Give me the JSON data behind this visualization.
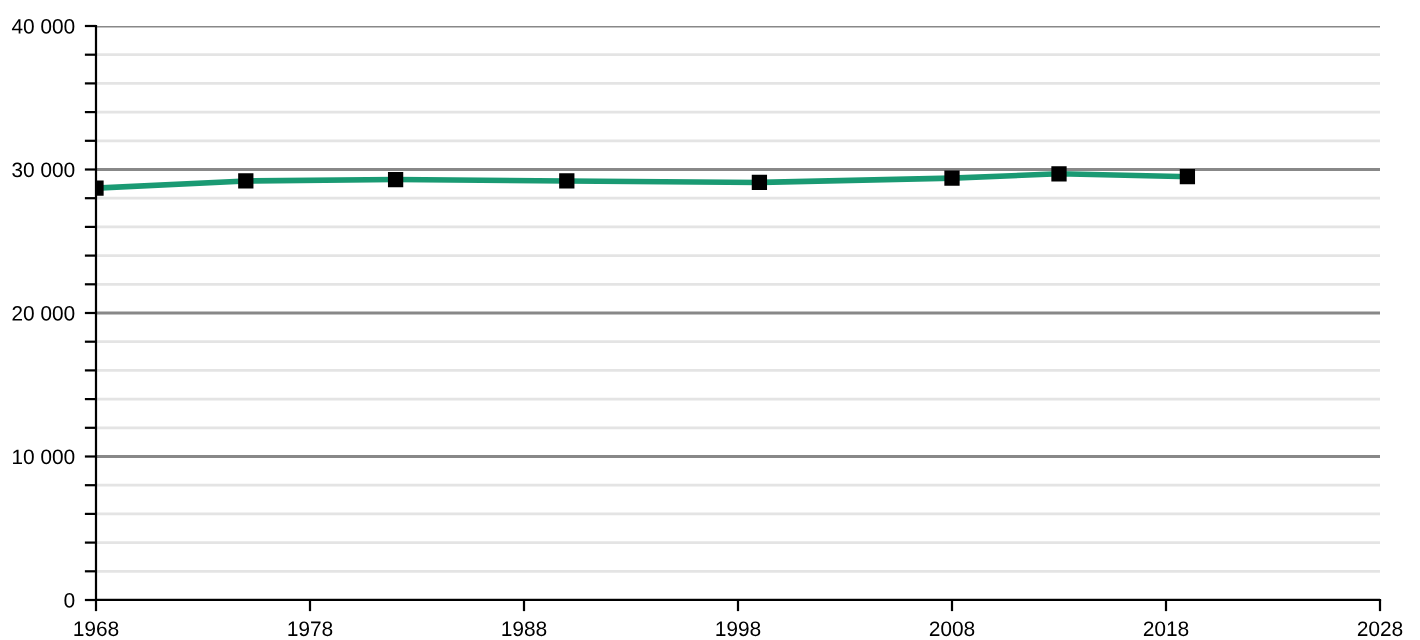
{
  "chart_data": {
    "type": "line",
    "x": [
      1968,
      1975,
      1982,
      1990,
      1999,
      2008,
      2013,
      2019
    ],
    "series": [
      {
        "color": "#1a9a73",
        "values": [
          28700,
          29200,
          29300,
          29200,
          29100,
          29400,
          29700,
          29500
        ]
      }
    ],
    "xlim": [
      1968,
      2028
    ],
    "xticks": [
      1968,
      1978,
      1988,
      1998,
      2008,
      2018,
      2028
    ],
    "ylim": [
      0,
      40000
    ],
    "yticks": [
      {
        "value": 0,
        "label": "0"
      },
      {
        "value": 2000,
        "label": null
      },
      {
        "value": 4000,
        "label": null
      },
      {
        "value": 6000,
        "label": null
      },
      {
        "value": 8000,
        "label": null
      },
      {
        "value": 10000,
        "label": "10 000"
      },
      {
        "value": 12000,
        "label": null
      },
      {
        "value": 14000,
        "label": null
      },
      {
        "value": 16000,
        "label": null
      },
      {
        "value": 18000,
        "label": null
      },
      {
        "value": 20000,
        "label": "20 000"
      },
      {
        "value": 22000,
        "label": null
      },
      {
        "value": 24000,
        "label": null
      },
      {
        "value": 26000,
        "label": null
      },
      {
        "value": 28000,
        "label": null
      },
      {
        "value": 30000,
        "label": "30 000"
      },
      {
        "value": 32000,
        "label": null
      },
      {
        "value": 34000,
        "label": null
      },
      {
        "value": 36000,
        "label": null
      },
      {
        "value": 38000,
        "label": null
      },
      {
        "value": 40000,
        "label": "40 000"
      }
    ],
    "grid": "y",
    "marker": "square",
    "line_style": "solid"
  }
}
